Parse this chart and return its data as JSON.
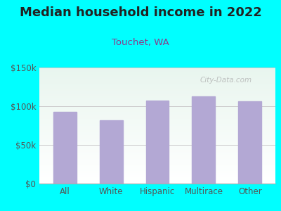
{
  "title": "Median household income in 2022",
  "subtitle": "Touchet, WA",
  "categories": [
    "All",
    "White",
    "Hispanic",
    "Multirace",
    "Other"
  ],
  "values": [
    93000,
    82000,
    107000,
    113000,
    106000
  ],
  "bar_color": "#b3a8d4",
  "bar_edge_color": "#b3a8d4",
  "ylim": [
    0,
    150000
  ],
  "yticks": [
    0,
    50000,
    100000,
    150000
  ],
  "ytick_labels": [
    "$0",
    "$50k",
    "$100k",
    "$150k"
  ],
  "background_outer": "#00ffff",
  "background_inner_top": "#e8f5ee",
  "background_inner_bottom": "#f8fff8",
  "grid_color": "#cccccc",
  "title_color": "#222222",
  "subtitle_color": "#8B3A8B",
  "tick_color": "#555555",
  "watermark": "City-Data.com",
  "title_fontsize": 13,
  "subtitle_fontsize": 9.5,
  "tick_fontsize": 8.5
}
